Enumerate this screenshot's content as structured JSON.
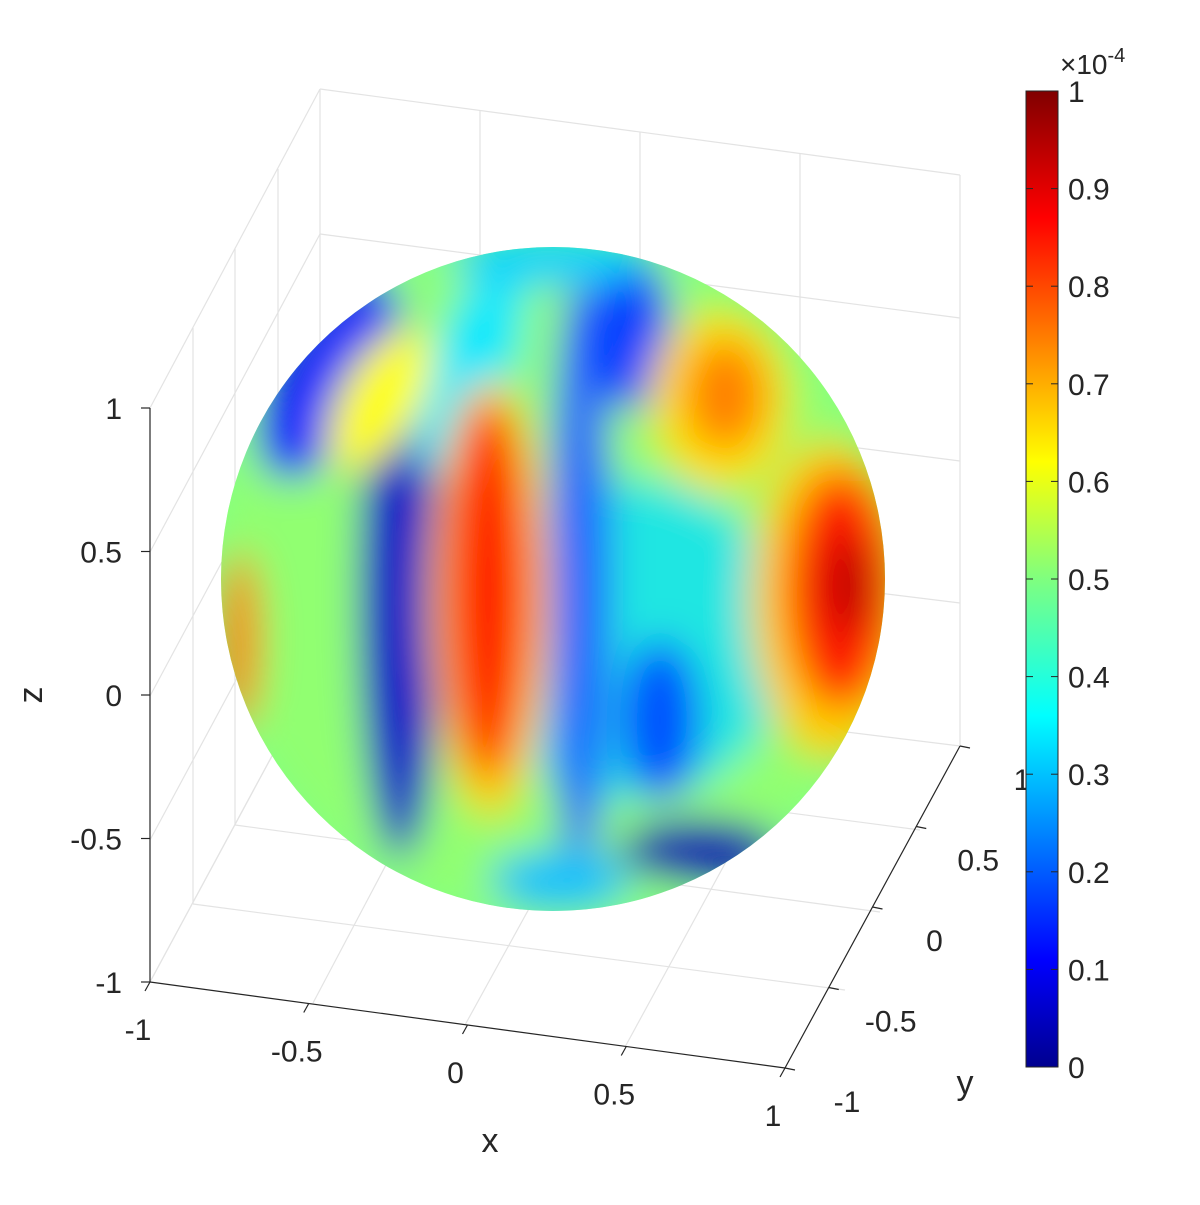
{
  "chart_data": {
    "type": "heatmap",
    "subtype": "3d-sphere-surface",
    "title": "",
    "xlabel": "x",
    "ylabel": "y",
    "zlabel": "z",
    "xlim": [
      -1,
      1
    ],
    "ylim": [
      -1,
      1
    ],
    "zlim": [
      -1,
      1
    ],
    "x_ticks": [
      "-1",
      "-0.5",
      "0",
      "0.5",
      "1"
    ],
    "y_ticks": [
      "-1",
      "-0.5",
      "0",
      "0.5",
      "1"
    ],
    "z_ticks": [
      "-1",
      "-0.5",
      "0",
      "0.5",
      "1"
    ],
    "grid": true,
    "colormap": "jet",
    "colorbar": {
      "location": "right",
      "ticks": [
        "0",
        "0.1",
        "0.2",
        "0.3",
        "0.4",
        "0.5",
        "0.6",
        "0.7",
        "0.8",
        "0.9",
        "1"
      ],
      "exponent_label": "×10",
      "exponent_power": "-4",
      "range": [
        0,
        0.0001
      ]
    },
    "surface_features": [
      {
        "description": "band",
        "center_x": -0.05,
        "center_z": 0.3,
        "value": 0.85
      },
      {
        "description": "band",
        "center_x": 0.85,
        "center_z": 0.35,
        "value": 0.97
      },
      {
        "description": "spot",
        "center_x": 0.5,
        "center_z": 0.85,
        "value": 0.75
      },
      {
        "description": "band",
        "center_x": -0.35,
        "center_z": 0.1,
        "value": 0.05
      },
      {
        "description": "band",
        "center_x": 0.2,
        "center_z": 0.5,
        "value": 0.2
      }
    ]
  }
}
